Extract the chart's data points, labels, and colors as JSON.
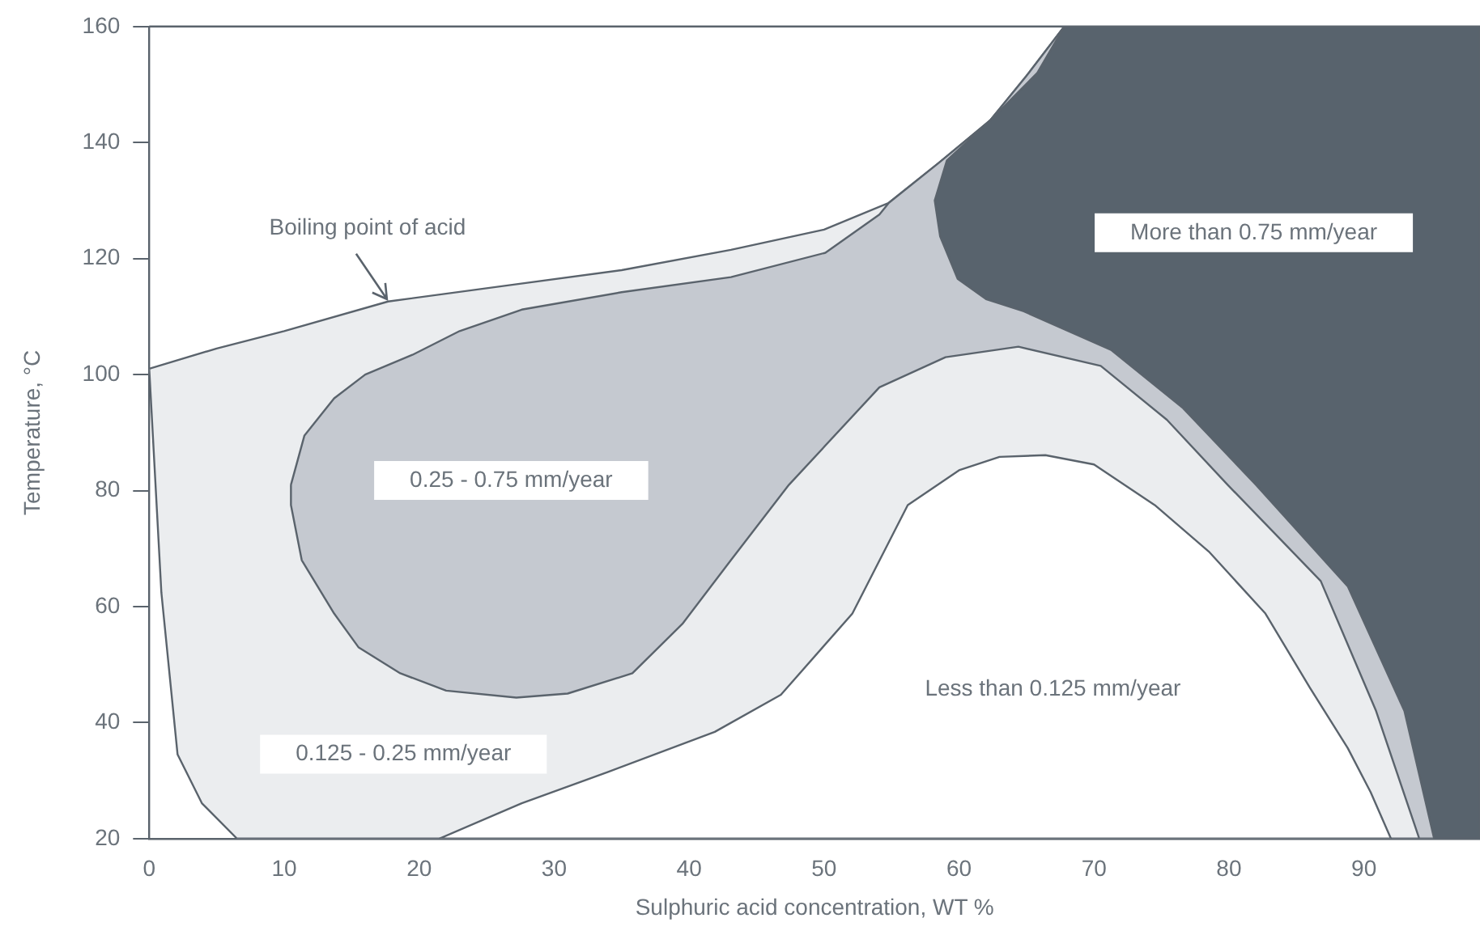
{
  "chart_data": {
    "type": "area",
    "xlabel": "Sulphuric acid concentration, WT %",
    "ylabel": "Temperature, °C",
    "xlim": [
      0,
      98.6
    ],
    "xticks": [
      0,
      10,
      20,
      30,
      40,
      50,
      60,
      70,
      80,
      90
    ],
    "ylim": [
      20,
      160
    ],
    "yticks": [
      20,
      40,
      60,
      80,
      100,
      120,
      140,
      160
    ],
    "grid": false,
    "legend": false,
    "series": [
      {
        "color": "#ebedef",
        "x": [
          0,
          5,
          10,
          17.7,
          27,
          35,
          43.1,
          50,
          54.8,
          58.5,
          62.3,
          65,
          67.8,
          98.6,
          98.6,
          6.5,
          3.9,
          2.1,
          0.9,
          0
        ],
        "values": [
          101,
          104.5,
          107.5,
          112.6,
          115.5,
          118,
          121.5,
          125,
          129.6,
          136.5,
          143.8,
          151.5,
          160,
          160,
          20,
          20,
          26.1,
          34.5,
          62.4,
          101
        ]
      },
      {
        "color": "#ffffff",
        "x": [
          21.5,
          27.6,
          34,
          41.9,
          46.8,
          52.1,
          56.2,
          60,
          63,
          66.4,
          70,
          74.5,
          78.5,
          82.7,
          86,
          88.8,
          90.5,
          92,
          21.5
        ],
        "values": [
          20,
          26.1,
          31.5,
          38.4,
          44.8,
          58.8,
          77.5,
          83.5,
          85.8,
          86.1,
          84.5,
          77.5,
          69.5,
          58.8,
          46,
          35.6,
          28,
          20,
          20
        ]
      },
      {
        "color": "#c5c9d0",
        "x": [
          10.5,
          11.5,
          13.7,
          16,
          19.5,
          23,
          27.6,
          35,
          43.1,
          50.1,
          54.1,
          54.8,
          58.5,
          62.3,
          65,
          67.8,
          98.6,
          98.6,
          94.1,
          90.9,
          86.8,
          79.9,
          75.4,
          70.5,
          64.4,
          59,
          54.1,
          47.4,
          43.1,
          39.5,
          35.8,
          31,
          27.2,
          22,
          18.6,
          15.5,
          13.7,
          11.3,
          10.5,
          10.5
        ],
        "values": [
          81,
          89.5,
          95.9,
          100,
          103.4,
          107.5,
          111.2,
          114.2,
          116.8,
          121,
          127.6,
          129.6,
          136.5,
          143.8,
          151.5,
          160,
          160,
          20,
          20,
          42,
          64.4,
          81,
          92.2,
          101.5,
          104.8,
          103,
          97.8,
          81,
          68,
          57,
          48.5,
          45,
          44.3,
          45.5,
          48.5,
          53,
          58.8,
          68,
          77.5,
          81
        ]
      },
      {
        "color": "#58636d",
        "x": [
          67.8,
          65.8,
          62.3,
          59.1,
          58.2,
          58.6,
          59.9,
          62,
          64.8,
          71.3,
          76.6,
          82,
          88.8,
          93,
          95.2,
          98.6,
          98.6
        ],
        "values": [
          160,
          152,
          143.8,
          136.9,
          130,
          123.8,
          116.5,
          113,
          110.9,
          104.2,
          94.2,
          81,
          63.5,
          42,
          20,
          20,
          160
        ]
      }
    ],
    "annotations": [
      "Boiling point of acid",
      "More than 0.75 mm/year",
      "0.25 - 0.75 mm/year",
      "Less than 0.125 mm/year",
      "0.125 - 0.25 mm/year"
    ]
  }
}
